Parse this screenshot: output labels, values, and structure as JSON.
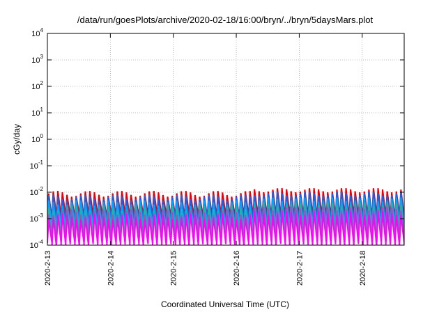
{
  "chart_data": {
    "type": "line",
    "title": "/data/run/goesPlots/archive/2020-02-18/16:00/bryn/../bryn/5daysMars.plot",
    "xlabel": "Coordinated Universal Time (UTC)",
    "ylabel": "cGy/day",
    "y_scale": "log",
    "ylim": [
      0.0001,
      10000
    ],
    "y_ticks": [
      {
        "base": "10",
        "exp": "-4",
        "value": 0.0001
      },
      {
        "base": "10",
        "exp": "-3",
        "value": 0.001
      },
      {
        "base": "10",
        "exp": "-2",
        "value": 0.01
      },
      {
        "base": "10",
        "exp": "-1",
        "value": 0.1
      },
      {
        "base": "10",
        "exp": "0",
        "value": 1
      },
      {
        "base": "10",
        "exp": "1",
        "value": 10
      },
      {
        "base": "10",
        "exp": "2",
        "value": 100
      },
      {
        "base": "10",
        "exp": "3",
        "value": 1000
      },
      {
        "base": "10",
        "exp": "4",
        "value": 10000
      }
    ],
    "xlim": [
      "2020-02-13",
      "2020-02-18 16:00"
    ],
    "x_ticks": [
      "2020-2-13",
      "2020-2-14",
      "2020-2-15",
      "2020-2-16",
      "2020-2-17",
      "2020-2-18"
    ],
    "grid": true,
    "legend": "none",
    "series": [
      {
        "color": "#e8000b",
        "sawtooth": {
          "peak": 0.009,
          "trough": 0.0012
        }
      },
      {
        "color": "#1f5fe0",
        "sawtooth": {
          "peak": 0.0065,
          "trough": 0.0008
        }
      },
      {
        "color": "#00a5ff",
        "sawtooth": {
          "peak": 0.004,
          "trough": 0.0005
        }
      },
      {
        "color": "#1fb5a0",
        "sawtooth": {
          "peak": 0.0025,
          "trough": 0.0003
        }
      },
      {
        "color": "#a050c0",
        "sawtooth": {
          "peak": 0.0018,
          "trough": 0.00015
        }
      },
      {
        "color": "#ff00ff",
        "sawtooth": {
          "peak": 0.0012,
          "trough": 0.0001
        }
      }
    ]
  }
}
